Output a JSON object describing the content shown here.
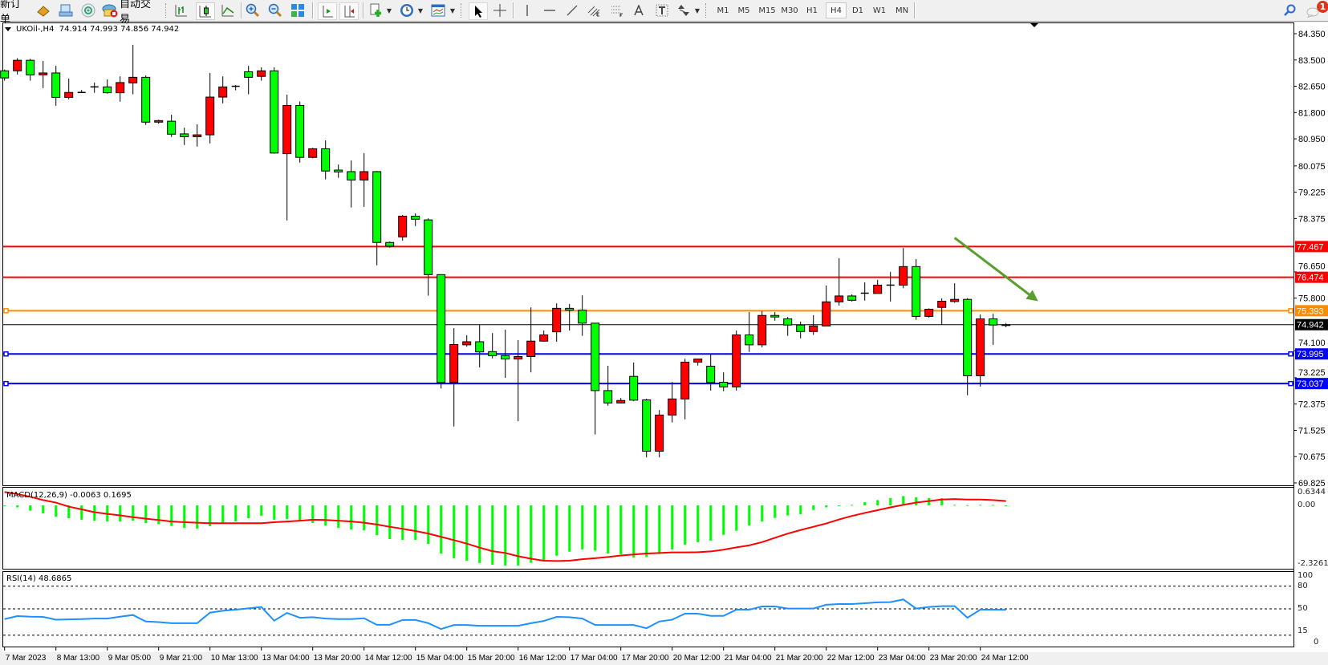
{
  "toolbar": {
    "new_order_label": "新订单",
    "auto_trading_label": "自动交易",
    "timeframes": [
      "M1",
      "M5",
      "M15",
      "M30",
      "H1",
      "H4",
      "D1",
      "W1",
      "MN"
    ],
    "selected_timeframe": "H4",
    "notification_count": "1"
  },
  "chart": {
    "header": "UKOil-,H4  74.914 74.993 74.856 74.942",
    "bull_color": "#ff0000",
    "bear_color": "#00ff00"
  },
  "macd": {
    "label": "MACD(12,26,9) -0.0063 0.1695",
    "axis_labels": [
      "0.6344",
      "0.00",
      "-2.3261"
    ]
  },
  "rsi": {
    "label": "RSI(14) 48.6865",
    "axis_labels": [
      "100",
      "80",
      "50",
      "15",
      "0"
    ]
  },
  "chart_data": {
    "type": "candlestick",
    "symbol": "UKOil-",
    "timeframe": "H4",
    "ylim": [
      69.825,
      84.35
    ],
    "price_ticks": [
      "84.350",
      "83.500",
      "82.650",
      "81.800",
      "80.950",
      "80.075",
      "79.225",
      "78.375",
      "76.650",
      "75.800",
      "74.100",
      "73.225",
      "72.375",
      "71.525",
      "70.675",
      "69.825"
    ],
    "time_labels": [
      "7 Mar 2023",
      "8 Mar 13:00",
      "9 Mar 05:00",
      "9 Mar 21:00",
      "10 Mar 13:00",
      "13 Mar 04:00",
      "13 Mar 20:00",
      "14 Mar 12:00",
      "15 Mar 04:00",
      "15 Mar 20:00",
      "16 Mar 12:00",
      "17 Mar 04:00",
      "17 Mar 20:00",
      "20 Mar 12:00",
      "21 Mar 04:00",
      "21 Mar 20:00",
      "22 Mar 12:00",
      "23 Mar 04:00",
      "23 Mar 20:00",
      "24 Mar 12:00"
    ],
    "ohlc_fields": [
      "open",
      "high",
      "low",
      "close"
    ],
    "candles": [
      [
        83.15,
        83.19,
        82.83,
        82.92
      ],
      [
        83.15,
        83.56,
        83.03,
        83.49
      ],
      [
        83.49,
        83.54,
        82.83,
        83.02
      ],
      [
        83.02,
        83.47,
        82.59,
        83.08
      ],
      [
        83.08,
        83.31,
        82.02,
        82.29
      ],
      [
        82.29,
        82.9,
        82.23,
        82.45
      ],
      [
        82.45,
        82.53,
        82.45,
        82.45
      ],
      [
        82.63,
        82.77,
        82.44,
        82.62
      ],
      [
        82.63,
        82.87,
        82.41,
        82.44
      ],
      [
        82.44,
        82.97,
        82.15,
        82.77
      ],
      [
        82.76,
        83.99,
        82.39,
        82.94
      ],
      [
        82.94,
        83.0,
        81.4,
        81.49
      ],
      [
        81.49,
        81.57,
        81.44,
        81.54
      ],
      [
        81.52,
        81.73,
        81.01,
        81.1
      ],
      [
        81.11,
        81.31,
        80.75,
        81.02
      ],
      [
        81.02,
        81.42,
        80.7,
        81.08
      ],
      [
        81.08,
        83.08,
        80.8,
        82.3
      ],
      [
        82.3,
        82.97,
        82.1,
        82.63
      ],
      [
        82.65,
        82.69,
        82.52,
        82.65
      ],
      [
        83.12,
        83.31,
        82.39,
        82.94
      ],
      [
        82.97,
        83.26,
        82.83,
        83.15
      ],
      [
        83.15,
        83.26,
        80.47,
        80.49
      ],
      [
        80.47,
        82.38,
        78.31,
        82.03
      ],
      [
        82.03,
        82.16,
        80.18,
        80.35
      ],
      [
        80.35,
        80.66,
        80.32,
        80.63
      ],
      [
        80.63,
        80.9,
        79.64,
        79.91
      ],
      [
        79.94,
        80.12,
        79.69,
        79.88
      ],
      [
        79.89,
        80.25,
        78.73,
        79.62
      ],
      [
        79.62,
        80.49,
        78.75,
        79.89
      ],
      [
        79.89,
        79.91,
        76.86,
        77.6
      ],
      [
        77.6,
        77.63,
        77.43,
        77.48
      ],
      [
        77.78,
        78.49,
        77.66,
        78.45
      ],
      [
        78.45,
        78.54,
        78.13,
        78.35
      ],
      [
        78.33,
        78.38,
        75.88,
        76.56
      ],
      [
        76.56,
        76.56,
        72.88,
        73.07
      ],
      [
        73.07,
        74.83,
        71.65,
        74.3
      ],
      [
        74.29,
        74.6,
        74.23,
        74.39
      ],
      [
        74.39,
        74.94,
        73.56,
        74.06
      ],
      [
        74.07,
        74.67,
        73.85,
        73.94
      ],
      [
        73.94,
        74.78,
        73.22,
        73.83
      ],
      [
        73.83,
        74.44,
        71.82,
        73.91
      ],
      [
        73.91,
        75.5,
        73.4,
        74.41
      ],
      [
        74.41,
        74.75,
        74.39,
        74.61
      ],
      [
        74.71,
        75.63,
        74.39,
        75.47
      ],
      [
        75.47,
        75.61,
        74.75,
        75.41
      ],
      [
        75.41,
        75.89,
        74.58,
        74.99
      ],
      [
        74.99,
        74.99,
        71.39,
        72.81
      ],
      [
        72.81,
        73.61,
        72.32,
        72.41
      ],
      [
        72.41,
        72.57,
        72.41,
        72.49
      ],
      [
        73.27,
        73.72,
        72.47,
        72.5
      ],
      [
        72.51,
        72.55,
        70.65,
        70.85
      ],
      [
        70.85,
        72.18,
        70.65,
        72.02
      ],
      [
        72.02,
        73.09,
        71.78,
        72.54
      ],
      [
        72.54,
        73.84,
        71.88,
        73.73
      ],
      [
        73.73,
        73.84,
        73.62,
        73.83
      ],
      [
        73.6,
        73.99,
        72.81,
        73.07
      ],
      [
        73.08,
        73.4,
        72.79,
        72.93
      ],
      [
        72.93,
        74.75,
        72.81,
        74.61
      ],
      [
        74.61,
        75.35,
        74.06,
        74.29
      ],
      [
        74.29,
        75.38,
        74.21,
        75.24
      ],
      [
        75.24,
        75.35,
        75.07,
        75.19
      ],
      [
        75.13,
        75.19,
        74.58,
        74.93
      ],
      [
        74.93,
        75.04,
        74.5,
        74.72
      ],
      [
        74.72,
        75.25,
        74.61,
        74.9
      ],
      [
        74.9,
        76.21,
        74.9,
        75.68
      ],
      [
        75.68,
        77.09,
        75.56,
        75.87
      ],
      [
        75.87,
        75.92,
        75.69,
        75.73
      ],
      [
        75.96,
        76.31,
        75.72,
        75.95
      ],
      [
        75.95,
        76.39,
        75.95,
        76.22
      ],
      [
        76.22,
        76.65,
        75.69,
        76.22
      ],
      [
        76.22,
        77.42,
        76.12,
        76.82
      ],
      [
        76.82,
        77.06,
        75.1,
        75.21
      ],
      [
        75.21,
        75.47,
        75.17,
        75.44
      ],
      [
        75.5,
        75.79,
        74.95,
        75.7
      ],
      [
        75.69,
        76.28,
        75.65,
        75.76
      ],
      [
        75.76,
        75.8,
        72.66,
        73.29
      ],
      [
        73.29,
        75.27,
        72.94,
        75.13
      ],
      [
        75.13,
        75.29,
        74.29,
        74.93
      ],
      [
        74.914,
        74.993,
        74.856,
        74.942
      ]
    ],
    "levels": [
      {
        "price": 77.467,
        "label": "77.467",
        "color": "#ff0000",
        "marker": false
      },
      {
        "price": 76.474,
        "label": "76.474",
        "color": "#ff0000",
        "marker": false
      },
      {
        "price": 75.393,
        "label": "75.393",
        "color": "#ff8c00",
        "marker": true
      },
      {
        "price": 74.942,
        "label": "74.942",
        "color": "#000000",
        "marker": false,
        "bid": true
      },
      {
        "price": 73.995,
        "label": "73.995",
        "color": "#0000ff",
        "marker": true
      },
      {
        "price": 73.037,
        "label": "73.037",
        "color": "#0000ff",
        "marker": true
      }
    ],
    "arrow": {
      "color": "#5a9e2f",
      "from": {
        "candle": 74,
        "price": 77.75
      },
      "to": {
        "candle": 80.5,
        "price": 75.7
      }
    },
    "macd": {
      "ylim": [
        -2.3261,
        0.6344
      ],
      "histogram": [
        -0.02,
        -0.08,
        -0.21,
        -0.32,
        -0.45,
        -0.51,
        -0.57,
        -0.61,
        -0.64,
        -0.64,
        -0.61,
        -0.7,
        -0.75,
        -0.82,
        -0.89,
        -0.92,
        -0.83,
        -0.72,
        -0.64,
        -0.51,
        -0.41,
        -0.57,
        -0.54,
        -0.61,
        -0.7,
        -0.8,
        -0.89,
        -0.96,
        -0.99,
        -1.18,
        -1.34,
        -1.37,
        -1.37,
        -1.53,
        -1.91,
        -2.1,
        -2.2,
        -2.29,
        -2.36,
        -2.39,
        -2.39,
        -2.28,
        -2.23,
        -2.0,
        -1.84,
        -1.75,
        -1.8,
        -1.91,
        -1.94,
        -2.07,
        -2.05,
        -1.93,
        -1.75,
        -1.56,
        -1.46,
        -1.4,
        -1.17,
        -1.01,
        -0.8,
        -0.64,
        -0.5,
        -0.4,
        -0.35,
        -0.18,
        -0.08,
        -0.02,
        0.02,
        0.13,
        0.21,
        0.29,
        0.37,
        0.32,
        0.29,
        0.29,
        0.02,
        0.01,
        0.02,
        0.02,
        -0.0063
      ],
      "signal": [
        0.53,
        0.45,
        0.34,
        0.21,
        0.11,
        -0.05,
        -0.16,
        -0.27,
        -0.34,
        -0.4,
        -0.47,
        -0.53,
        -0.58,
        -0.64,
        -0.67,
        -0.69,
        -0.71,
        -0.71,
        -0.71,
        -0.71,
        -0.71,
        -0.67,
        -0.64,
        -0.61,
        -0.57,
        -0.58,
        -0.61,
        -0.64,
        -0.69,
        -0.76,
        -0.85,
        -0.93,
        -1.02,
        -1.12,
        -1.25,
        -1.38,
        -1.52,
        -1.68,
        -1.82,
        -1.89,
        -2.02,
        -2.12,
        -2.2,
        -2.21,
        -2.2,
        -2.14,
        -2.1,
        -2.05,
        -1.99,
        -1.95,
        -1.91,
        -1.89,
        -1.87,
        -1.87,
        -1.86,
        -1.83,
        -1.76,
        -1.67,
        -1.59,
        -1.46,
        -1.29,
        -1.12,
        -0.98,
        -0.85,
        -0.72,
        -0.56,
        -0.42,
        -0.3,
        -0.19,
        -0.08,
        0.02,
        0.11,
        0.17,
        0.23,
        0.25,
        0.23,
        0.23,
        0.21,
        0.1695
      ],
      "histogram_color": "#00ff00",
      "signal_color": "#ff0000"
    },
    "rsi": {
      "ylim": [
        0,
        100
      ],
      "levels": [
        80,
        50,
        15
      ],
      "color": "#1e90ff",
      "values": [
        36.4,
        40.4,
        39.6,
        39.3,
        35.7,
        36.1,
        36.4,
        37.1,
        37.1,
        39.6,
        41.8,
        33.2,
        32.5,
        31.0,
        31.0,
        31.0,
        45.0,
        47.5,
        48.9,
        50.7,
        52.5,
        34.3,
        44.6,
        38.2,
        39.0,
        37.1,
        36.4,
        36.4,
        37.5,
        28.9,
        28.9,
        35.3,
        35.3,
        31.0,
        23.2,
        28.6,
        28.6,
        27.5,
        27.5,
        27.5,
        27.5,
        31.0,
        33.9,
        39.3,
        39.0,
        37.1,
        28.6,
        28.6,
        28.6,
        28.6,
        24.3,
        33.2,
        35.7,
        43.6,
        43.6,
        40.7,
        40.7,
        48.9,
        48.9,
        53.2,
        53.2,
        50.4,
        50.4,
        50.4,
        55.4,
        56.4,
        56.4,
        57.5,
        58.6,
        58.9,
        62.5,
        50.4,
        52.5,
        53.6,
        53.6,
        38.2,
        48.9,
        48.9,
        48.6865
      ]
    }
  }
}
